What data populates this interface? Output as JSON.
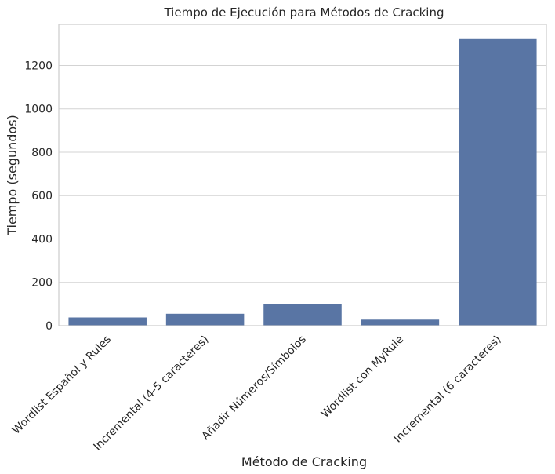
{
  "chart_data": {
    "type": "bar",
    "title": "Tiempo de Ejecución para Métodos de Cracking",
    "xlabel": "Método de Cracking",
    "ylabel": "Tiempo (segundos)",
    "categories": [
      "Wordlist Español y Rules",
      "Incremental (4-5 caracteres)",
      "Añadir Números/Símbolos",
      "Wordlist con MyRule",
      "Incremental (6 caracteres)"
    ],
    "values": [
      38,
      55,
      100,
      28,
      1322
    ],
    "ylim": [
      0,
      1390
    ],
    "yticks": [
      0,
      200,
      400,
      600,
      800,
      1000,
      1200
    ],
    "grid": true,
    "colors": {
      "bar": "#5975a4",
      "grid": "#d3d3d3",
      "spine": "#cccccc"
    }
  }
}
